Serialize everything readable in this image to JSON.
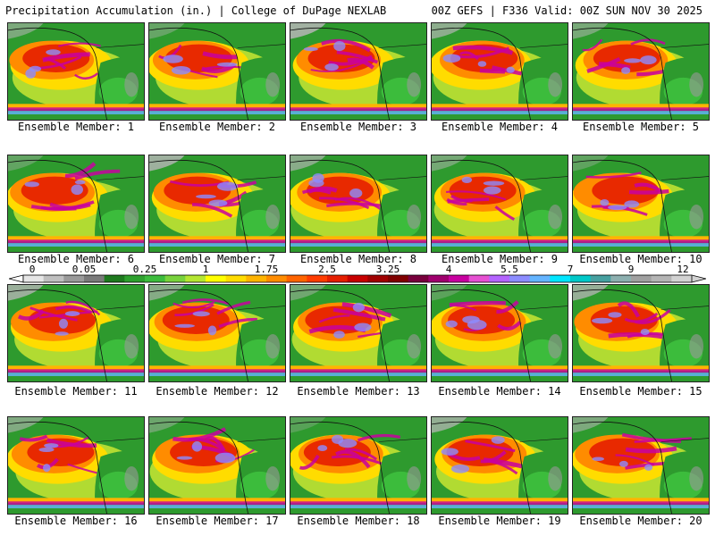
{
  "header": {
    "title": "Precipitation Accumulation (in.) | College of DuPage NEXLAB",
    "run_info": "00Z GEFS | F336 Valid: 00Z SUN NOV 30 2025"
  },
  "members": [
    "Ensemble Member: 1",
    "Ensemble Member: 2",
    "Ensemble Member: 3",
    "Ensemble Member: 4",
    "Ensemble Member: 5",
    "Ensemble Member: 6",
    "Ensemble Member: 7",
    "Ensemble Member: 8",
    "Ensemble Member: 9",
    "Ensemble Member: 10",
    "Ensemble Member: 11",
    "Ensemble Member: 12",
    "Ensemble Member: 13",
    "Ensemble Member: 14",
    "Ensemble Member: 15",
    "Ensemble Member: 16",
    "Ensemble Member: 17",
    "Ensemble Member: 18",
    "Ensemble Member: 19",
    "Ensemble Member: 20"
  ],
  "colorbar": {
    "labels": [
      "0",
      "0.05",
      "0.25",
      "1",
      "1.75",
      "2.5",
      "3.25",
      "4",
      "5.5",
      "7",
      "9",
      "12"
    ],
    "colors": [
      "#e6e6e6",
      "#bfbfbf",
      "#9a9a9a",
      "#7a7a7a",
      "#1e7a1e",
      "#2ea02e",
      "#3cbc3c",
      "#78d23c",
      "#b4e632",
      "#ffff00",
      "#ffdc00",
      "#ffb400",
      "#ff8c00",
      "#ff6400",
      "#ff3c00",
      "#e61e00",
      "#c80000",
      "#a00000",
      "#800000",
      "#78003c",
      "#a0006e",
      "#c800a0",
      "#e650d2",
      "#b464ff",
      "#8c8cff",
      "#64b4ff",
      "#00e6ff",
      "#00c8c8",
      "#46a0a0",
      "#8cafaf",
      "#a0a0a0",
      "#b4b4b4",
      "#d2d2d2"
    ]
  }
}
